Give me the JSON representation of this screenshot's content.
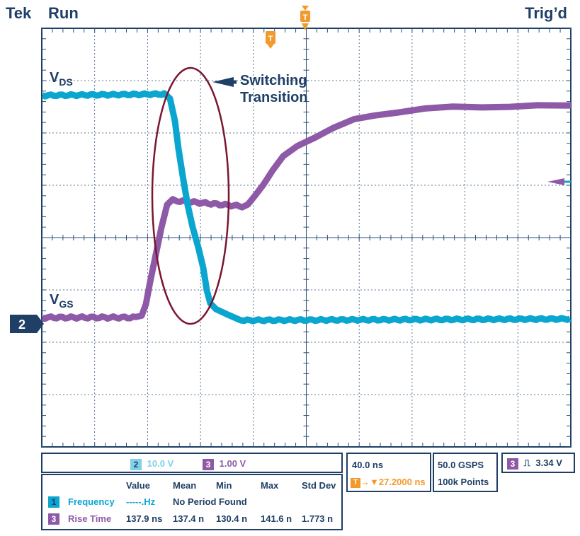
{
  "header": {
    "brand": "Tek",
    "state": "Run",
    "trigger_status": "Trig’d"
  },
  "markers": {
    "trigger_pos": "T",
    "ref": "T",
    "channel2": "2"
  },
  "annotations": {
    "vds_main": "V",
    "vds_sub": "DS",
    "vgs_main": "V",
    "vgs_sub": "GS",
    "callout_line1": "Switching",
    "callout_line2": "Transition"
  },
  "colors": {
    "ch2": "#0aa6cf",
    "ch3": "#8e5aa8",
    "ellipse": "#7a1630",
    "frame": "#1f3f66",
    "orange": "#f29a2e"
  },
  "scale_bar": {
    "ch2_num": "2",
    "ch2_scale": "10.0 V",
    "ch3_num": "3",
    "ch3_scale": "1.00 V"
  },
  "timebase": {
    "time_div": "40.0 ns",
    "trigger_offset": "27.2000 ns",
    "sample_rate": "50.0 GSPS",
    "record_length": "100k Points"
  },
  "trigger": {
    "channel": "3",
    "level": "3.34 V"
  },
  "measurements": {
    "headers": [
      "Value",
      "Mean",
      "Min",
      "Max",
      "Std Dev"
    ],
    "rows": [
      {
        "num": "1",
        "name": "Frequency",
        "value": "-----.Hz",
        "note": "No Period Found"
      },
      {
        "num": "3",
        "name": "Rise Time",
        "value": "137.9 ns",
        "mean": "137.4 n",
        "min": "130.4 n",
        "max": "141.6 n",
        "std": "1.773 n"
      }
    ]
  }
}
